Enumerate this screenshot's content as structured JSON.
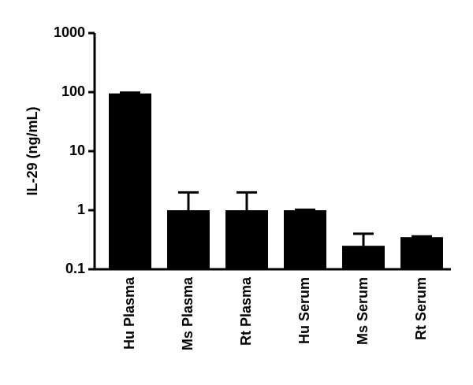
{
  "chart_data": {
    "type": "bar",
    "y_label": "IL-29 (ng/mL)",
    "categories": [
      "Hu Plasma",
      "Ms Plasma",
      "Rt Plasma",
      "Hu Serum",
      "Ms Serum",
      "Rt Serum"
    ],
    "values": [
      95,
      1,
      1,
      1,
      0.25,
      0.35
    ],
    "errors": [
      3,
      1,
      1,
      0.02,
      0.15,
      0.01
    ],
    "color": "#000000",
    "log_y": true,
    "ylim": [
      0.1,
      1000
    ],
    "yticks": [
      0.1,
      1,
      10,
      100,
      1000
    ]
  }
}
